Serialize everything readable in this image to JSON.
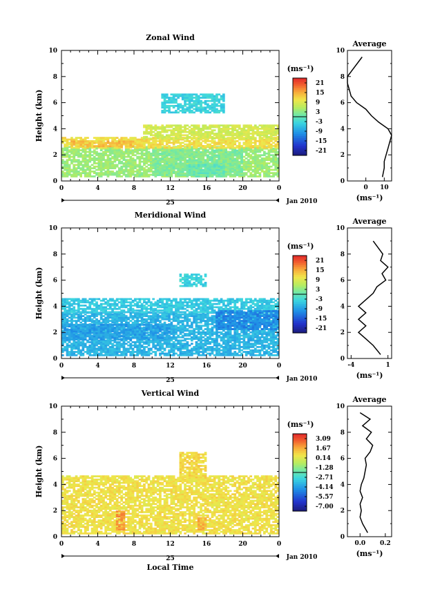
{
  "figure": {
    "xlabel": "Local Time",
    "date_label": "Jan 2010",
    "day_label": "25",
    "ylabel": "Height (km)",
    "avg_title": "Average",
    "unit": "(ms⁻¹)",
    "x_ticks": [
      "0",
      "4",
      "8",
      "12",
      "16",
      "20",
      "0"
    ],
    "y_ticks": [
      "0",
      "2",
      "4",
      "6",
      "8",
      "10"
    ]
  },
  "chart_data": [
    {
      "type": "heatmap",
      "title": "Zonal Wind",
      "xlabel": "",
      "ylabel": "Height (km)",
      "xlim": [
        0,
        24
      ],
      "ylim": [
        0,
        10
      ],
      "colorbar": {
        "unit": "(ms⁻¹)",
        "range": [
          -24,
          24
        ],
        "ticks": [
          "21",
          "15",
          "9",
          "3",
          "-3",
          "-9",
          "-15",
          "-21"
        ]
      },
      "bands": [
        {
          "x0": 0,
          "x1": 24,
          "y0": 0.3,
          "y1": 2.6,
          "value": 4
        },
        {
          "x0": 0,
          "x1": 24,
          "y0": 2.5,
          "y1": 3.3,
          "value": 11
        },
        {
          "x0": 1,
          "x1": 8,
          "y0": 2.6,
          "y1": 3.1,
          "value": 14
        },
        {
          "x0": 9,
          "x1": 24,
          "y0": 3.2,
          "y1": 4.3,
          "value": 8
        },
        {
          "x0": 10,
          "x1": 20,
          "y0": 0.4,
          "y1": 2.3,
          "value": 2
        },
        {
          "x0": 14,
          "x1": 18,
          "y0": 0.3,
          "y1": 1.3,
          "value": 0
        },
        {
          "x0": 11,
          "x1": 18,
          "y0": 5.2,
          "y1": 6.6,
          "value": -4
        }
      ],
      "average_profile": {
        "xlabel": "(ms⁻¹)",
        "x_ticks": [
          "0",
          "10"
        ],
        "xlim": [
          -10,
          14
        ],
        "heights": [
          0.3,
          1,
          1.5,
          2,
          2.5,
          3,
          3.5,
          4,
          4.5,
          5,
          5.5,
          6,
          6.5,
          7,
          7.5,
          8,
          9.5
        ],
        "values": [
          9,
          10,
          10,
          11,
          12,
          13,
          14,
          12,
          7,
          3,
          0,
          -5,
          -8,
          -9,
          -10,
          -10,
          -2
        ]
      }
    },
    {
      "type": "heatmap",
      "title": "Meridional Wind",
      "xlabel": "",
      "ylabel": "Height (km)",
      "xlim": [
        0,
        24
      ],
      "ylim": [
        0,
        10
      ],
      "colorbar": {
        "unit": "(ms⁻¹)",
        "range": [
          -24,
          24
        ],
        "ticks": [
          "21",
          "15",
          "9",
          "3",
          "-3",
          "-9",
          "-15",
          "-21"
        ]
      },
      "bands": [
        {
          "x0": 0,
          "x1": 24,
          "y0": 0.2,
          "y1": 3.5,
          "value": -7
        },
        {
          "x0": 0,
          "x1": 24,
          "y0": 3.5,
          "y1": 4.6,
          "value": -5
        },
        {
          "x0": 17,
          "x1": 24,
          "y0": 2.2,
          "y1": 3.6,
          "value": -11
        },
        {
          "x0": 0,
          "x1": 12,
          "y0": 1.4,
          "y1": 2.6,
          "value": -9
        },
        {
          "x0": 13,
          "x1": 16,
          "y0": 5.5,
          "y1": 6.4,
          "value": -4
        }
      ],
      "average_profile": {
        "xlabel": "(ms⁻¹)",
        "x_ticks": [
          "-4",
          "1"
        ],
        "xlim": [
          -4.5,
          1.5
        ],
        "heights": [
          0.3,
          1,
          1.5,
          2,
          2.5,
          3,
          3.5,
          4,
          4.5,
          5,
          5.5,
          6,
          6.5,
          7,
          7.5,
          8,
          9
        ],
        "values": [
          0,
          -1,
          -2,
          -3,
          -2,
          -3,
          -2,
          -3,
          -2,
          -1,
          -0.5,
          0.7,
          0.2,
          1,
          0,
          0.3,
          -1
        ]
      }
    },
    {
      "type": "heatmap",
      "title": "Vertical Wind",
      "xlabel": "Local Time",
      "ylabel": "Height (km)",
      "xlim": [
        0,
        24
      ],
      "ylim": [
        0,
        10
      ],
      "colorbar": {
        "unit": "(ms⁻¹)",
        "range": [
          -7.8,
          3.8
        ],
        "ticks": [
          "3.09",
          "1.67",
          "0.14",
          "-1.28",
          "-2.71",
          "-4.14",
          "-5.57",
          "-7.00"
        ]
      },
      "bands": [
        {
          "x0": 0,
          "x1": 24,
          "y0": 0.2,
          "y1": 4.7,
          "value": 0.6
        },
        {
          "x0": 6,
          "x1": 7,
          "y0": 0.5,
          "y1": 2.0,
          "value": 2.0
        },
        {
          "x0": 15,
          "x1": 16,
          "y0": 0.5,
          "y1": 1.5,
          "value": 1.5
        },
        {
          "x0": 13,
          "x1": 16,
          "y0": 4.5,
          "y1": 6.5,
          "value": 0.8
        }
      ],
      "average_profile": {
        "xlabel": "(ms⁻¹)",
        "x_ticks": [
          "0.0",
          "0.2"
        ],
        "xlim": [
          -0.1,
          0.25
        ],
        "heights": [
          0.3,
          1,
          1.5,
          2,
          2.5,
          3,
          3.5,
          4,
          4.5,
          5,
          5.5,
          6,
          6.5,
          7,
          7.5,
          8,
          8.5,
          9,
          9.5
        ],
        "values": [
          0.06,
          0.02,
          0.0,
          0.01,
          0.0,
          0.02,
          0.0,
          0.01,
          0.03,
          0.04,
          0.05,
          0.04,
          0.08,
          0.1,
          0.05,
          0.09,
          0.02,
          0.08,
          0.0
        ]
      }
    }
  ]
}
